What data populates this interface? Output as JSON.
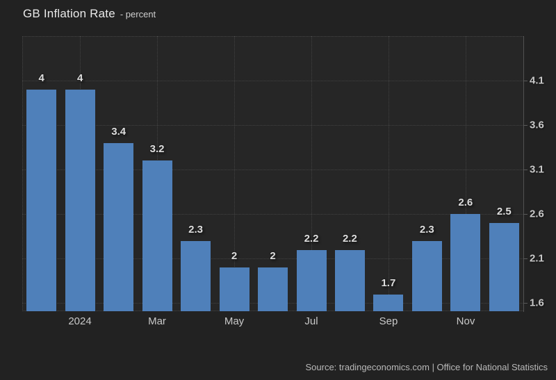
{
  "header": {
    "title": "GB Inflation Rate",
    "subtitle": "- percent"
  },
  "footer": {
    "source": "Source: tradingeconomics.com | Office for National Statistics"
  },
  "colors": {
    "background": "#222222",
    "plot_background": "#262626",
    "bar": "#4f80ba",
    "gridline": "rgba(255,255,255,0.13)",
    "axis_line": "#525252",
    "tick_label": "#c9c9c9",
    "data_label": "#dddddd"
  },
  "chart_data": {
    "type": "bar",
    "title": "GB Inflation Rate",
    "ylabel": "percent",
    "values": [
      4,
      4,
      3.4,
      3.2,
      2.3,
      2,
      2,
      2.2,
      2.2,
      1.7,
      2.3,
      2.6,
      2.5
    ],
    "bar_labels": [
      "4",
      "4",
      "3.4",
      "3.2",
      "2.3",
      "2",
      "2",
      "2.2",
      "2.2",
      "1.7",
      "2.3",
      "2.6",
      "2.5"
    ],
    "x_tick_labels": [
      "2024",
      "Mar",
      "May",
      "Jul",
      "Sep",
      "Nov"
    ],
    "x_tick_bar_index": [
      1,
      3,
      5,
      7,
      9,
      11
    ],
    "y_ticks": [
      4.1,
      3.6,
      3.1,
      2.6,
      2.1,
      1.6
    ],
    "ylim": [
      1.51,
      4.6
    ],
    "grid": true,
    "grid_style": "dotted",
    "legend": "none",
    "y_axis_side": "right"
  }
}
